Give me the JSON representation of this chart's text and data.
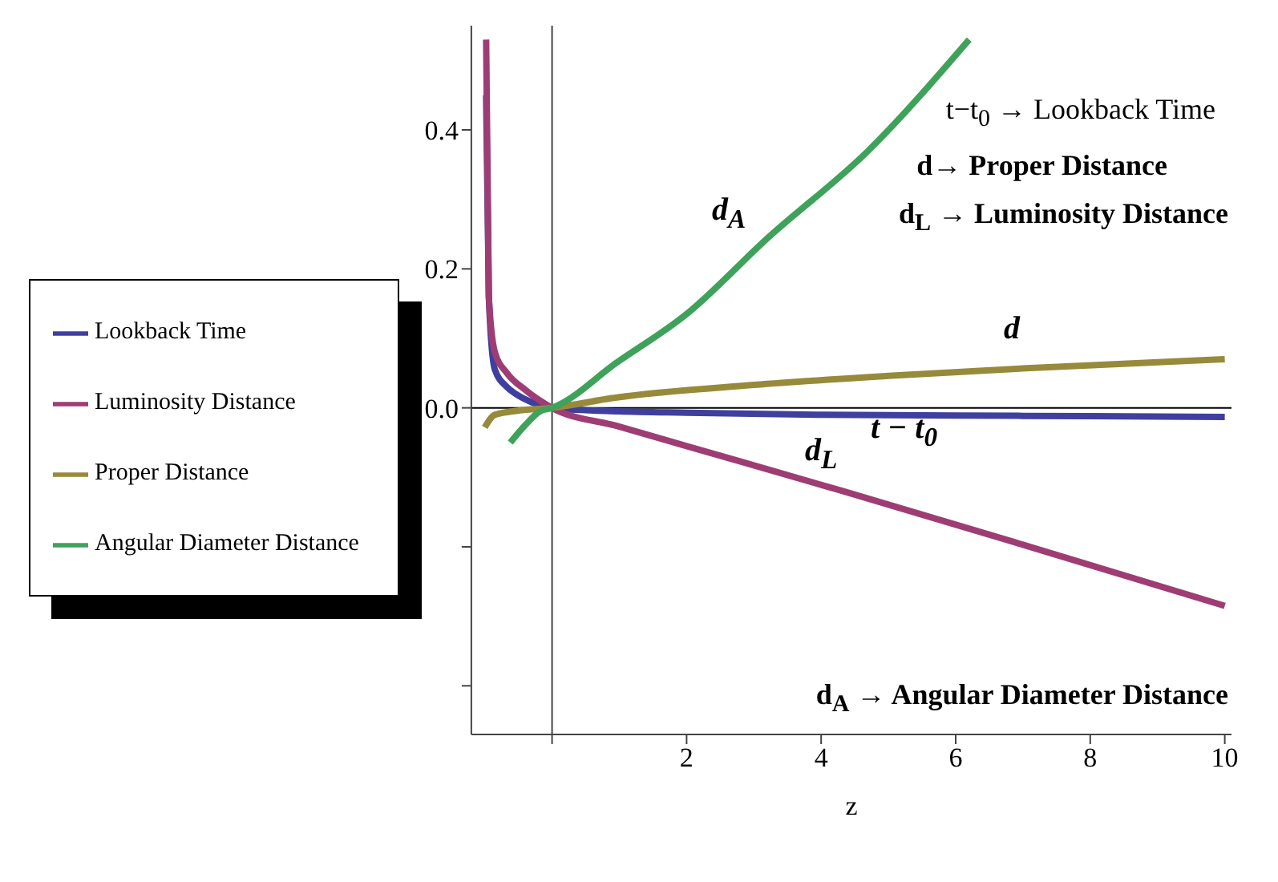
{
  "chart_data": {
    "type": "line",
    "xlabel": "z",
    "xlim": [
      -1.2,
      10.1
    ],
    "ylim": [
      -0.47,
      0.55
    ],
    "xticks": [
      {
        "value": 0,
        "label": null
      },
      2,
      4,
      6,
      8,
      10
    ],
    "yticks": [
      {
        "value": -0.4,
        "label": null
      },
      {
        "value": -0.2,
        "label": null
      },
      {
        "value": 0,
        "label": "0.0"
      },
      0.2,
      0.4
    ],
    "legend": "left",
    "marker": "none",
    "line_style": "solid",
    "ref_lines": [
      {
        "axis": "x",
        "value": 0,
        "color": "#444444"
      },
      {
        "axis": "y",
        "value": 0,
        "color": "#000000"
      }
    ],
    "series": [
      {
        "name": "Lookback Time",
        "color": "#3f3f9f",
        "x": [
          -0.98,
          -0.94,
          -0.85,
          -0.67,
          -0.54,
          -0.3,
          0,
          1,
          2,
          4,
          6,
          8,
          10
        ],
        "values": [
          0.45,
          0.16,
          0.055,
          0.03,
          0.02,
          0.008,
          0,
          -0.005,
          -0.007,
          -0.01,
          -0.011,
          -0.012,
          -0.013
        ]
      },
      {
        "name": "Luminosity Distance",
        "color": "#9e3d74",
        "x": [
          -0.98,
          -0.94,
          -0.85,
          -0.67,
          -0.4,
          0,
          0.96,
          2,
          4.33,
          7,
          10
        ],
        "values": [
          0.53,
          0.16,
          0.08,
          0.05,
          0.026,
          0,
          -0.026,
          -0.055,
          -0.12,
          -0.197,
          -0.285
        ]
      },
      {
        "name": "Proper Distance",
        "color": "#978a3a",
        "x": [
          -1.0,
          -0.85,
          -0.5,
          0,
          0.96,
          3,
          5,
          7.05,
          10
        ],
        "values": [
          -0.028,
          -0.01,
          -0.004,
          0,
          0.015,
          0.033,
          0.046,
          0.057,
          0.07
        ]
      },
      {
        "name": "Angular Diameter Distance",
        "color": "#3fa25a",
        "x": [
          -0.62,
          -0.4,
          -0.18,
          0,
          0.96,
          2,
          3.2,
          4.7,
          6.2
        ],
        "values": [
          -0.05,
          -0.025,
          -0.005,
          0,
          0.065,
          0.135,
          0.244,
          0.37,
          0.53
        ]
      }
    ],
    "annotations": [
      "t−t$_{0}$ → Lookback Time",
      "d→ Proper Distance",
      "d$_{L}$ → Luminosity Distance",
      "d$_{A}$ → Angular Diameter Distance",
      "d$_{A}$",
      "d$_{L}$",
      "d",
      "t − t$_{0}$"
    ]
  }
}
